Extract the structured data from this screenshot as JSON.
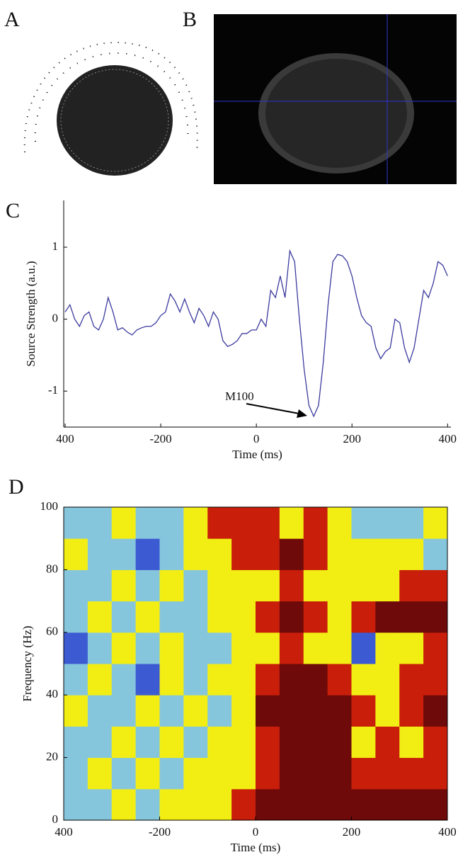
{
  "panels": [
    {
      "label": "A"
    },
    {
      "label": "B"
    }
  ],
  "chart_data": [
    {
      "type": "line",
      "label": "C",
      "ylabel": "Source Strength (a.u.)",
      "xlabel": "Time (ms)",
      "annotation": "M100",
      "xlim": [
        -403,
        407
      ],
      "ylim": [
        -1.5,
        1.65
      ],
      "xticks": [
        {
          "value": -400,
          "label": "400"
        },
        -200,
        0,
        200,
        400
      ],
      "yticks": [
        -1,
        0,
        1
      ],
      "x": [
        -400,
        -390,
        -380,
        -370,
        -360,
        -350,
        -340,
        -330,
        -320,
        -310,
        -300,
        -290,
        -280,
        -270,
        -260,
        -250,
        -240,
        -230,
        -220,
        -210,
        -200,
        -190,
        -180,
        -170,
        -160,
        -150,
        -140,
        -130,
        -120,
        -110,
        -100,
        -90,
        -80,
        -70,
        -60,
        -50,
        -40,
        -30,
        -20,
        -10,
        0,
        10,
        20,
        30,
        40,
        50,
        60,
        70,
        80,
        90,
        100,
        110,
        120,
        130,
        140,
        150,
        160,
        170,
        180,
        190,
        200,
        210,
        220,
        230,
        240,
        250,
        260,
        270,
        280,
        290,
        300,
        310,
        320,
        330,
        340,
        350,
        360,
        370,
        380,
        390,
        400
      ],
      "series": [
        {
          "color": "#3a3a9e",
          "values": [
            0.1,
            0.2,
            0.0,
            -0.1,
            0.05,
            0.1,
            -0.1,
            -0.15,
            0.0,
            0.3,
            0.1,
            -0.15,
            -0.12,
            -0.18,
            -0.22,
            -0.15,
            -0.12,
            -0.1,
            -0.1,
            -0.05,
            0.05,
            0.1,
            0.35,
            0.25,
            0.1,
            0.28,
            0.1,
            -0.05,
            0.15,
            0.05,
            -0.1,
            0.1,
            0.0,
            -0.3,
            -0.38,
            -0.35,
            -0.3,
            -0.2,
            -0.2,
            -0.15,
            -0.15,
            0.0,
            -0.1,
            0.4,
            0.3,
            0.6,
            0.3,
            0.95,
            0.8,
            0.0,
            -0.7,
            -1.2,
            -1.35,
            -1.2,
            -0.6,
            0.2,
            0.8,
            0.9,
            0.88,
            0.8,
            0.6,
            0.3,
            0.05,
            -0.05,
            -0.1,
            -0.4,
            -0.55,
            -0.45,
            -0.4,
            0.0,
            -0.05,
            -0.4,
            -0.6,
            -0.4,
            0.0,
            0.4,
            0.3,
            0.5,
            0.8,
            0.75,
            0.6
          ]
        }
      ]
    },
    {
      "type": "heatmap",
      "label": "D",
      "ylabel": "Frequency (Hz)",
      "xlabel": "Time (ms)",
      "xlim": [
        -400,
        400
      ],
      "ylim": [
        0,
        100
      ],
      "xticks": [
        {
          "value": -400,
          "label": "400"
        },
        -200,
        0,
        200,
        400
      ],
      "yticks": [
        0,
        20,
        40,
        60,
        80,
        100
      ],
      "xbins": [
        -400,
        -350,
        -300,
        -250,
        -200,
        -150,
        -100,
        -50,
        0,
        50,
        100,
        150,
        200,
        250,
        300,
        350,
        400
      ],
      "ybins": [
        0,
        10,
        20,
        30,
        40,
        50,
        60,
        70,
        80,
        90,
        100
      ],
      "colors": [
        "#3c5ad2",
        "#86c6dc",
        "#f2ee14",
        "#c81e0a",
        "#6e0a0a"
      ],
      "z": [
        [
          1,
          1,
          2,
          1,
          2,
          2,
          2,
          3,
          4,
          4,
          4,
          4,
          4,
          4,
          4,
          4
        ],
        [
          1,
          2,
          1,
          2,
          1,
          2,
          2,
          2,
          3,
          4,
          4,
          4,
          3,
          3,
          3,
          3
        ],
        [
          1,
          1,
          2,
          1,
          2,
          1,
          2,
          2,
          3,
          4,
          4,
          4,
          2,
          3,
          2,
          3
        ],
        [
          2,
          1,
          1,
          2,
          1,
          2,
          1,
          2,
          4,
          4,
          4,
          4,
          3,
          2,
          3,
          4
        ],
        [
          1,
          2,
          1,
          0,
          2,
          1,
          2,
          2,
          3,
          4,
          4,
          3,
          2,
          2,
          3,
          3
        ],
        [
          0,
          1,
          2,
          1,
          2,
          1,
          1,
          2,
          2,
          3,
          2,
          2,
          0,
          2,
          2,
          3
        ],
        [
          1,
          2,
          1,
          2,
          1,
          1,
          2,
          2,
          3,
          4,
          3,
          2,
          3,
          4,
          4,
          4
        ],
        [
          1,
          1,
          2,
          1,
          2,
          1,
          2,
          2,
          2,
          3,
          2,
          2,
          2,
          2,
          3,
          3
        ],
        [
          2,
          1,
          1,
          0,
          1,
          2,
          2,
          3,
          3,
          4,
          3,
          2,
          2,
          2,
          2,
          1
        ],
        [
          1,
          1,
          2,
          1,
          1,
          2,
          3,
          3,
          3,
          2,
          3,
          2,
          1,
          1,
          1,
          2
        ]
      ]
    }
  ]
}
